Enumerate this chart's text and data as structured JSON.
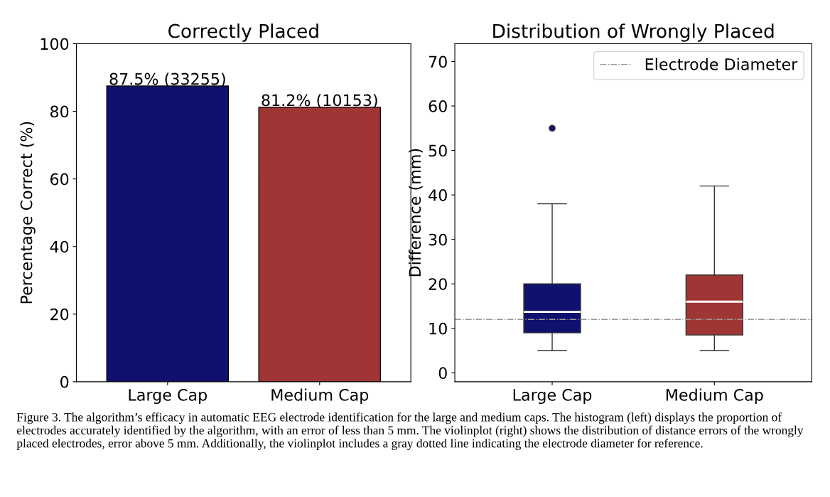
{
  "chart_data": [
    {
      "type": "bar",
      "title": "Correctly Placed",
      "ylabel": "Percentage Correct (%)",
      "categories": [
        "Large Cap",
        "Medium Cap"
      ],
      "values": [
        87.5,
        81.2
      ],
      "colors": [
        "#10106e",
        "#a03535"
      ],
      "value_labels": [
        "87.5% (33255)",
        "81.2% (10153)"
      ],
      "ylim": [
        0,
        100
      ],
      "yticks": [
        0,
        20,
        40,
        60,
        80,
        100
      ],
      "grid": false,
      "legend": false,
      "annotations": [
        "Figure 3. The algorithm’s efficacy in automatic EEG electrode identification for the large and medium caps. The histogram (left) displays the proportion of electrodes accurately identified by the algorithm, with an error of less than 5 mm. The violinplot (right) shows the distribution of distance errors of the wrongly placed electrodes, error above 5 mm. Additionally, the violinplot includes a gray dotted line indicating the electrode diameter for reference."
      ]
    },
    {
      "type": "box",
      "title": "Distribution of Wrongly Placed",
      "ylabel": "Difference (mm)",
      "categories": [
        "Large Cap",
        "Medium Cap"
      ],
      "colors": [
        "#10106e",
        "#a03535"
      ],
      "boxes": [
        {
          "low": 5,
          "q1": 9,
          "median": 13.7,
          "q3": 20,
          "high": 38,
          "outliers": [
            55
          ]
        },
        {
          "low": 5,
          "q1": 8.5,
          "median": 16,
          "q3": 22,
          "high": 42,
          "outliers": [
            69
          ]
        }
      ],
      "ylim": [
        -2,
        74
      ],
      "yticks": [
        0,
        10,
        20,
        30,
        40,
        50,
        60,
        70
      ],
      "grid": false,
      "legend": "top right",
      "ref_lines": [
        {
          "axis": "y",
          "value": 12,
          "label": "Electrode Diameter",
          "color": "#999999",
          "line_style": "dashdot"
        }
      ]
    }
  ]
}
